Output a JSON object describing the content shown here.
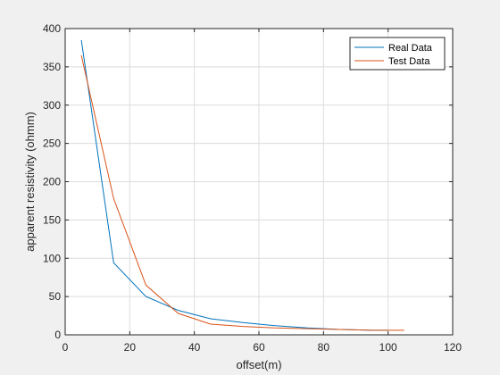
{
  "chart_data": {
    "type": "line",
    "title": "",
    "xlabel": "offset(m)",
    "ylabel": "apparent resistivity (ohmm)",
    "xlim": [
      0,
      120
    ],
    "ylim": [
      0,
      400
    ],
    "xticks": [
      0,
      20,
      40,
      60,
      80,
      100,
      120
    ],
    "yticks": [
      0,
      50,
      100,
      150,
      200,
      250,
      300,
      350,
      400
    ],
    "grid": true,
    "legend": "top-right",
    "series": [
      {
        "name": "Real Data",
        "color": "#0072BD",
        "x": [
          5,
          15,
          25,
          35,
          45,
          55,
          65,
          75,
          85,
          95,
          100
        ],
        "y": [
          385,
          94,
          50,
          32,
          21,
          16,
          12,
          9,
          7,
          6,
          6
        ]
      },
      {
        "name": "Test Data",
        "color": "#D95319",
        "x": [
          5,
          15,
          25,
          35,
          45,
          55,
          65,
          75,
          85,
          95,
          105
        ],
        "y": [
          365,
          178,
          65,
          28,
          14,
          11,
          9,
          8,
          7,
          6,
          6
        ]
      }
    ]
  }
}
